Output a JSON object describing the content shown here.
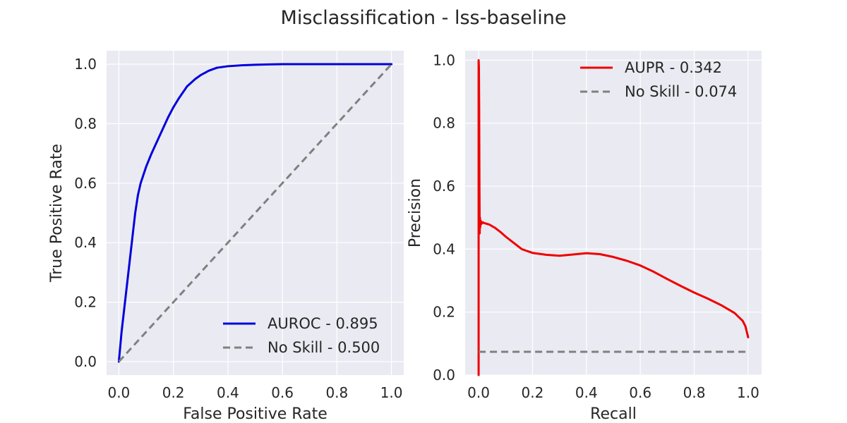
{
  "title": "Misclassification - lss-baseline",
  "chart_data": [
    {
      "type": "line",
      "xlabel": "False Positive Rate",
      "ylabel": "True Positive Rate",
      "xlim": [
        -0.045,
        1.045
      ],
      "ylim": [
        -0.045,
        1.045
      ],
      "xticks": [
        0.0,
        0.2,
        0.4,
        0.6,
        0.8,
        1.0
      ],
      "yticks": [
        0.0,
        0.2,
        0.4,
        0.6,
        0.8,
        1.0
      ],
      "tick_format": "0.0",
      "grid": true,
      "legend_position": "lower-right",
      "series": [
        {
          "name": "AUROC - 0.895",
          "color": "#0000dd",
          "style": "solid",
          "x": [
            0.0,
            0.01,
            0.02,
            0.03,
            0.04,
            0.05,
            0.06,
            0.07,
            0.08,
            0.1,
            0.12,
            0.15,
            0.18,
            0.2,
            0.22,
            0.25,
            0.28,
            0.3,
            0.33,
            0.36,
            0.4,
            0.45,
            0.5,
            0.55,
            0.6,
            0.7,
            0.8,
            0.9,
            1.0
          ],
          "y": [
            0.0,
            0.1,
            0.18,
            0.26,
            0.34,
            0.42,
            0.5,
            0.56,
            0.6,
            0.655,
            0.7,
            0.76,
            0.82,
            0.855,
            0.885,
            0.925,
            0.95,
            0.963,
            0.978,
            0.988,
            0.993,
            0.996,
            0.998,
            0.999,
            1.0,
            1.0,
            1.0,
            1.0,
            1.0
          ]
        },
        {
          "name": "No Skill - 0.500",
          "color": "#808080",
          "style": "dashed",
          "x": [
            0.0,
            1.0
          ],
          "y": [
            0.0,
            1.0
          ]
        }
      ]
    },
    {
      "type": "line",
      "xlabel": "Recall",
      "ylabel": "Precision",
      "xlim": [
        -0.05,
        1.05
      ],
      "ylim": [
        0.0,
        1.03
      ],
      "xticks": [
        0.0,
        0.2,
        0.4,
        0.6,
        0.8,
        1.0
      ],
      "yticks": [
        0.0,
        0.2,
        0.4,
        0.6,
        0.8,
        1.0
      ],
      "tick_format": "0.0",
      "grid": true,
      "legend_position": "upper-right",
      "series": [
        {
          "name": "AUPR - 0.342",
          "color": "#ee0000",
          "style": "solid",
          "x": [
            0.0,
            0.0,
            0.001,
            0.002,
            0.003,
            0.004,
            0.005,
            0.006,
            0.008,
            0.01,
            0.015,
            0.02,
            0.04,
            0.06,
            0.08,
            0.1,
            0.13,
            0.16,
            0.2,
            0.25,
            0.3,
            0.35,
            0.4,
            0.45,
            0.5,
            0.55,
            0.6,
            0.65,
            0.7,
            0.75,
            0.8,
            0.85,
            0.9,
            0.95,
            0.98,
            0.99,
            1.0
          ],
          "y": [
            0.0,
            1.0,
            0.98,
            0.85,
            0.6,
            0.45,
            0.5,
            0.47,
            0.49,
            0.48,
            0.485,
            0.483,
            0.478,
            0.468,
            0.455,
            0.44,
            0.42,
            0.4,
            0.388,
            0.382,
            0.379,
            0.383,
            0.387,
            0.384,
            0.375,
            0.363,
            0.348,
            0.328,
            0.305,
            0.283,
            0.262,
            0.243,
            0.222,
            0.197,
            0.172,
            0.155,
            0.12
          ]
        },
        {
          "name": "No Skill - 0.074",
          "color": "#808080",
          "style": "dashed",
          "x": [
            0.0,
            1.0
          ],
          "y": [
            0.074,
            0.074
          ]
        }
      ]
    }
  ]
}
